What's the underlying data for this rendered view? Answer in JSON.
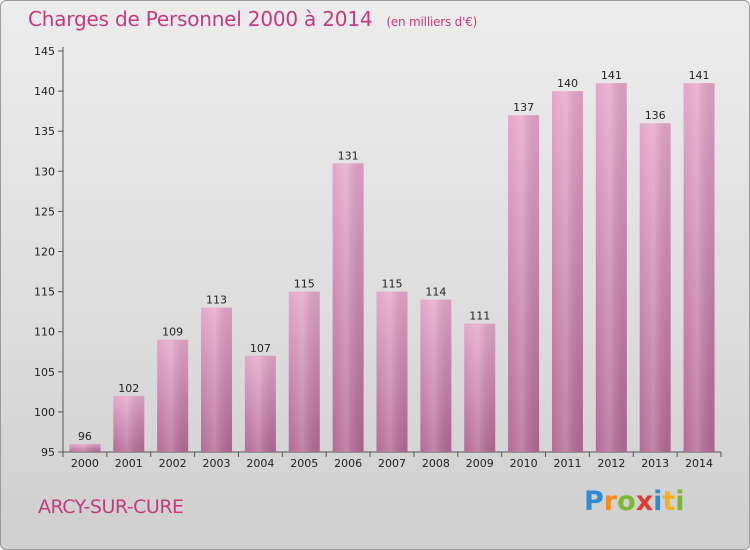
{
  "chart_data": {
    "type": "bar",
    "title": "Charges de Personnel 2000 à 2014",
    "subtitle": "(en milliers d'€)",
    "categories": [
      "2000",
      "2001",
      "2002",
      "2003",
      "2004",
      "2005",
      "2006",
      "2007",
      "2008",
      "2009",
      "2010",
      "2011",
      "2012",
      "2013",
      "2014"
    ],
    "values": [
      96,
      102,
      109,
      113,
      107,
      115,
      131,
      115,
      114,
      111,
      137,
      140,
      141,
      136,
      141
    ],
    "ylim": [
      95,
      145
    ],
    "yticks": [
      95,
      100,
      105,
      110,
      115,
      120,
      125,
      130,
      135,
      140,
      145
    ],
    "grid": false,
    "bar_color": "#d98fb8"
  },
  "footer": {
    "commune": "ARCY-SUR-CURE",
    "logo_letters": [
      "P",
      "r",
      "o",
      "x",
      "i",
      "t",
      "i"
    ],
    "logo_colors": [
      "#2e8bd6",
      "#f28c1e",
      "#7ab92f",
      "#e23b2f",
      "#2e8bd6",
      "#f2b21e",
      "#7ab92f"
    ]
  }
}
